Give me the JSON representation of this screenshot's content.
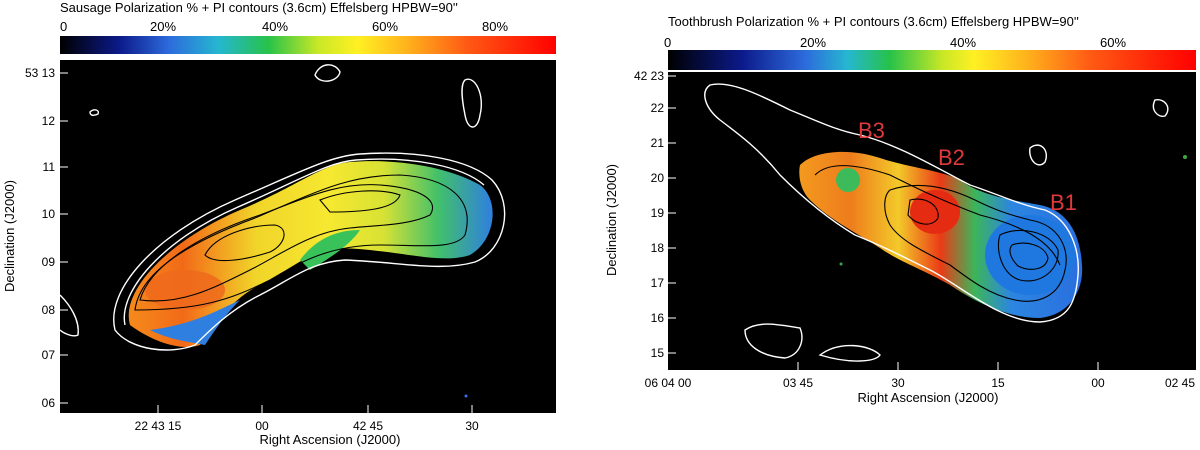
{
  "left": {
    "title": "Sausage   Polarization % + PI contours (3.6cm)    Effelsberg    HPBW=90''",
    "colorbar_ticks": [
      "0",
      "20%",
      "40%",
      "60%",
      "80%"
    ],
    "dec_ticks": [
      "53 13",
      "12",
      "11",
      "10",
      "09",
      "08",
      "07",
      "06"
    ],
    "ra_ticks": [
      "22 43 15",
      "00",
      "42 45",
      "30"
    ],
    "xlabel": "Right Ascension (J2000)",
    "ylabel": "Declination (J2000)"
  },
  "right": {
    "title": "Toothbrush   Polarization % + PI contours (3.6cm)    Effelsberg    HPBW=90''",
    "colorbar_ticks": [
      "0",
      "20%",
      "40%",
      "60%"
    ],
    "dec_ticks": [
      "42 23",
      "22",
      "21",
      "20",
      "19",
      "18",
      "17",
      "16",
      "15"
    ],
    "ra_ticks": [
      "06 04 00",
      "03 45",
      "30",
      "15",
      "00",
      "02 45"
    ],
    "xlabel": "Right Ascension (J2000)",
    "ylabel": "Declination (J2000)",
    "labels": [
      "B3",
      "B2",
      "B1"
    ]
  }
}
